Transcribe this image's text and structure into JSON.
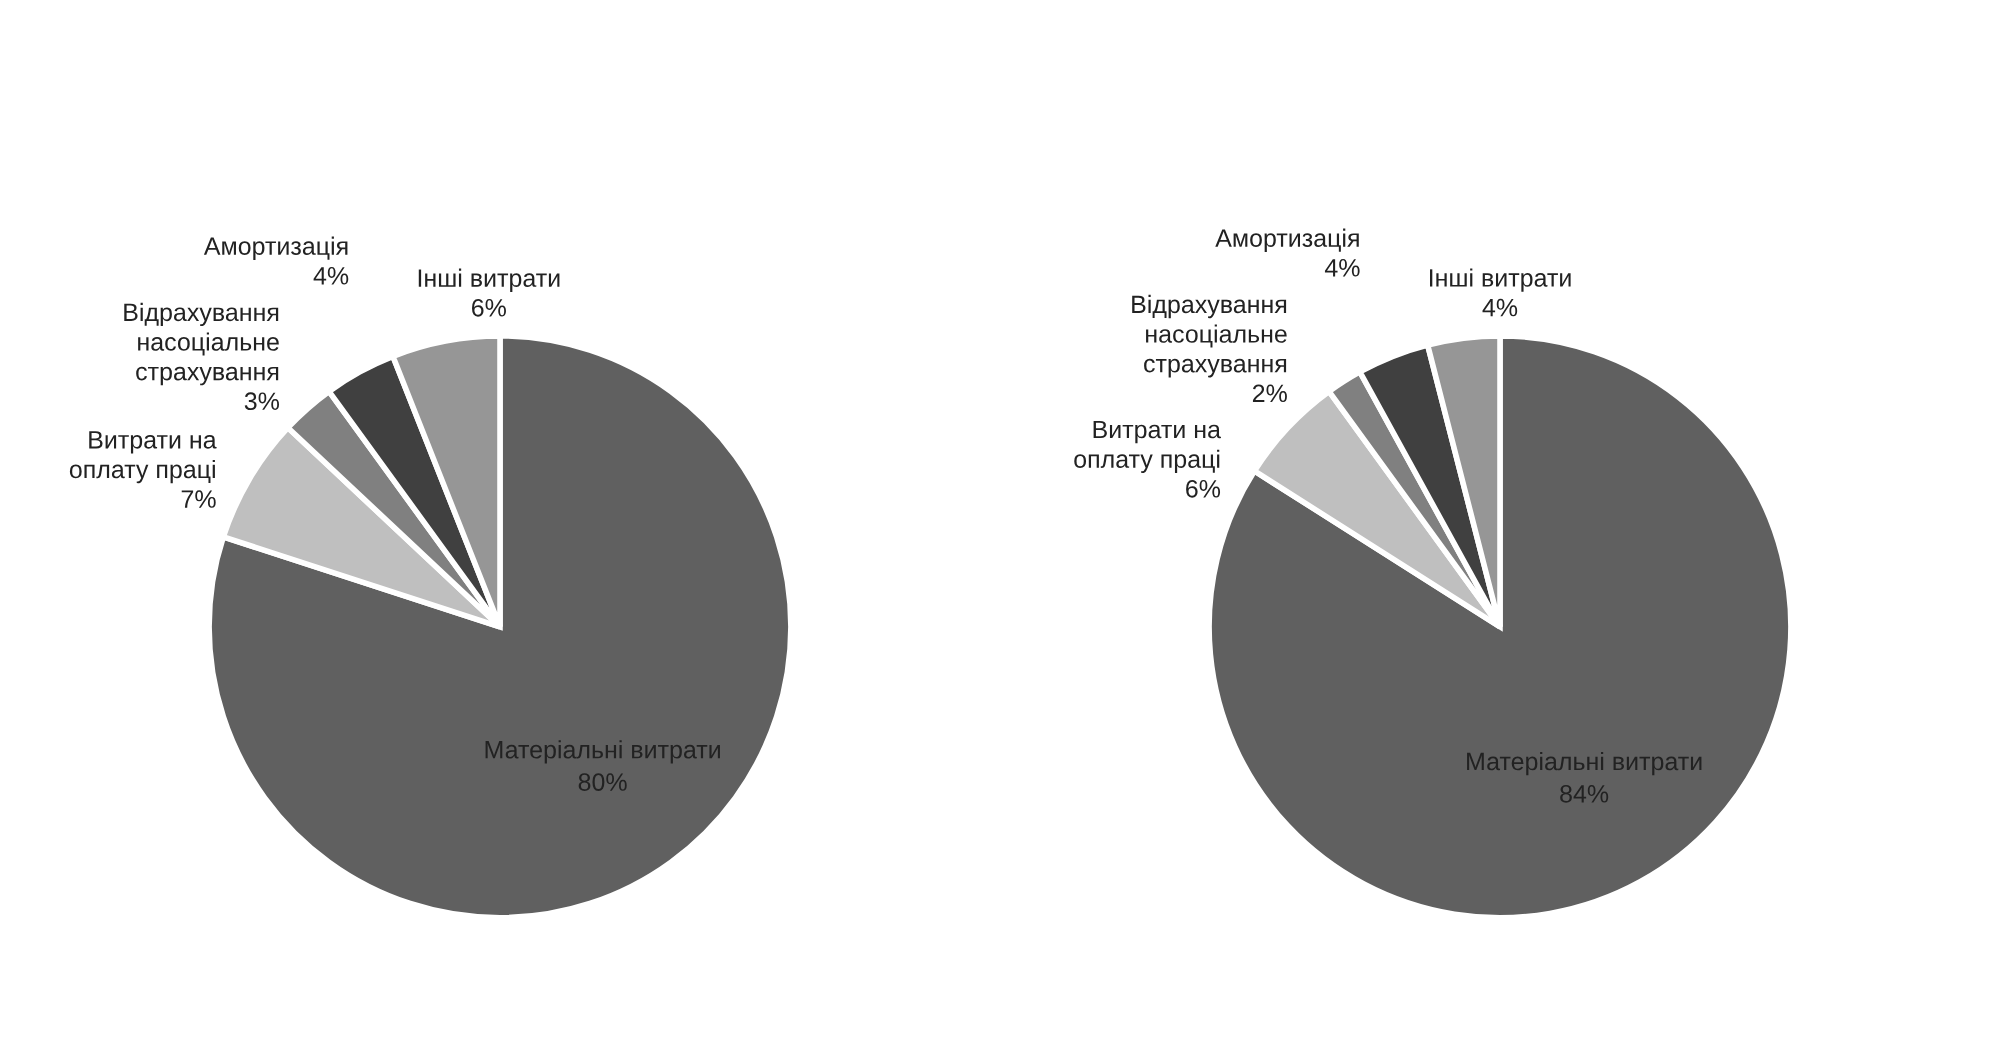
{
  "chart_data": [
    {
      "type": "pie",
      "categories": [
        "Матеріальні витрати",
        "Витрати на оплату праці",
        "Відрахування насоціальне страхування",
        "Амортизація",
        "Інші витрати"
      ],
      "values": [
        80,
        7,
        3,
        4,
        6
      ],
      "value_labels": [
        "80%",
        "7%",
        "3%",
        "4%",
        "6%"
      ],
      "colors": [
        "#606060",
        "#bfbfbf",
        "#808080",
        "#404040",
        "#969696"
      ]
    },
    {
      "type": "pie",
      "categories": [
        "Матеріальні витрати",
        "Витрати на оплату праці",
        "Відрахування насоціальне страхування",
        "Амортизація",
        "Інші витрати"
      ],
      "values": [
        84,
        6,
        2,
        4,
        4
      ],
      "value_labels": [
        "84%",
        "6%",
        "2%",
        "4%",
        "4%"
      ],
      "colors": [
        "#606060",
        "#bfbfbf",
        "#808080",
        "#404040",
        "#969696"
      ]
    }
  ]
}
